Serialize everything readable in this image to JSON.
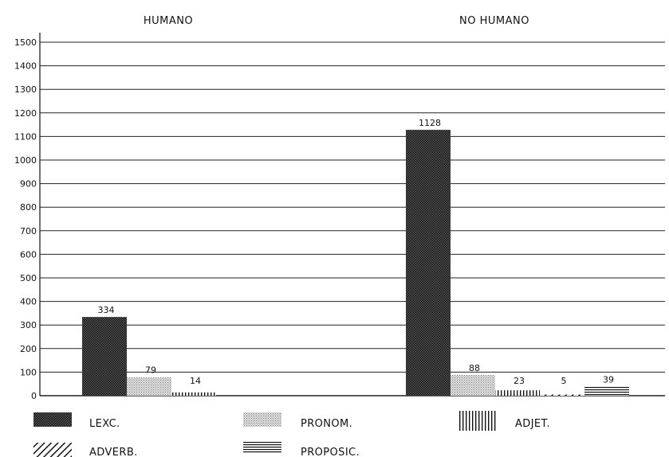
{
  "chart_data": {
    "type": "bar",
    "categories": [
      "HUMANO",
      "NO HUMANO"
    ],
    "series": [
      {
        "name": "LEXC.",
        "pattern": "dense-dots",
        "values": [
          334,
          1128
        ]
      },
      {
        "name": "PRONOM.",
        "pattern": "light-dots",
        "values": [
          79,
          88
        ]
      },
      {
        "name": "ADJET.",
        "pattern": "vertical-lines",
        "values": [
          14,
          23
        ]
      },
      {
        "name": "ADVERB.",
        "pattern": "diagonal-lines",
        "values": [
          0,
          5
        ]
      },
      {
        "name": "PROPOSIC.",
        "pattern": "horizontal-lines",
        "values": [
          0,
          39
        ]
      }
    ],
    "data_labels": [
      [
        "334",
        "1128"
      ],
      [
        "79",
        "88"
      ],
      [
        "14",
        "23"
      ],
      [
        null,
        "5"
      ],
      [
        null,
        "39"
      ]
    ],
    "y_ticks": [
      "0",
      "100",
      "200",
      "300",
      "400",
      "500",
      "600",
      "700",
      "800",
      "900",
      "1000",
      "1100",
      "1200",
      "1300",
      "1400",
      "1500"
    ],
    "ylim": [
      0,
      1500
    ],
    "grid": true,
    "title": "",
    "xlabel": "",
    "ylabel": "",
    "legend_position": "bottom",
    "colors": {
      "ink": "#111111",
      "grid": "#222222",
      "background": "#ffffff"
    }
  }
}
